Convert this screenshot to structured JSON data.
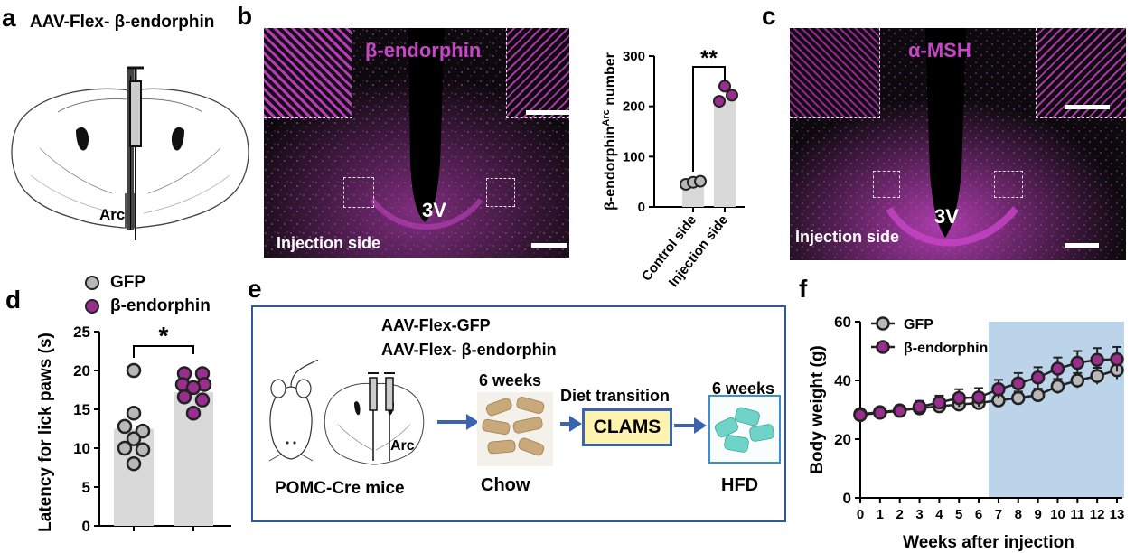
{
  "panels": {
    "a": {
      "letter": "a",
      "title": "AAV-Flex- β-endorphin",
      "region_label": "Arc"
    },
    "b": {
      "letter": "b",
      "image_title": "β-endorphin",
      "ventricle_label": "3V",
      "side_label": "Injection side",
      "colors": {
        "stain": "#c845c8"
      }
    },
    "c": {
      "letter": "c",
      "image_title": "α-MSH",
      "ventricle_label": "3V",
      "side_label": "Injection side"
    },
    "d": {
      "letter": "d",
      "legend": [
        {
          "name": "GFP",
          "color": "#b8b8b8"
        },
        {
          "name": "β-endorphin",
          "color": "#9a2e8e"
        }
      ]
    },
    "e": {
      "letter": "e",
      "vector_line1": "AAV-Flex-GFP",
      "vector_line2": "AAV-Flex- β-endorphin",
      "weeks1": "6 weeks",
      "weeks2": "6 weeks",
      "diet_transition": "Diet transition",
      "clams": "CLAMS",
      "mouse_label": "POMC-Cre mice",
      "region_label": "Arc",
      "chow": "Chow",
      "hfd": "HFD",
      "colors": {
        "frame": "#2e5a9c",
        "arrow": "#3b63b0",
        "clams_bg": "#fff3b0",
        "hfd_pellet": "#6fd3c8",
        "chow_pellet": "#c9a87a"
      }
    },
    "f": {
      "letter": "f",
      "shade_color": "#bcd4ea"
    }
  },
  "chart_data": [
    {
      "id": "b_bar",
      "type": "bar",
      "categories": [
        "Control side",
        "Injection side"
      ],
      "values": [
        48,
        220
      ],
      "points": [
        [
          45,
          49,
          51
        ],
        [
          210,
          222,
          240
        ]
      ],
      "ylabel": "β-endorphin",
      "ylabel_sup": "Arc",
      "ylabel_tail": " number",
      "ylim": [
        0,
        300
      ],
      "yticks": [
        0,
        100,
        200,
        300
      ],
      "significance": "**",
      "bar_color": "#d9d9d9",
      "point_colors": [
        "#b8b8b8",
        "#9a2e8e"
      ]
    },
    {
      "id": "d_bar",
      "type": "bar",
      "categories": [
        "GFP",
        "β-endorphin"
      ],
      "values": [
        12.5,
        17.2
      ],
      "points": [
        [
          20,
          14.5,
          12.8,
          12.2,
          11.2,
          10,
          9.8,
          8
        ],
        [
          19.6,
          19.6,
          18.2,
          18.2,
          17.8,
          16.6,
          16.2,
          14.5
        ]
      ],
      "ylabel": "Latency for lick paws (s)",
      "ylim": [
        0,
        25
      ],
      "yticks": [
        0,
        5,
        10,
        15,
        20,
        25
      ],
      "significance": "*",
      "bar_color": "#d9d9d9",
      "point_colors": [
        "#b8b8b8",
        "#9a2e8e"
      ]
    },
    {
      "id": "f_line",
      "type": "line",
      "x": [
        0,
        1,
        2,
        3,
        4,
        5,
        6,
        7,
        8,
        9,
        10,
        11,
        12,
        13
      ],
      "series": [
        {
          "name": "GFP",
          "values": [
            28.5,
            29.2,
            29.8,
            30.5,
            31.2,
            31.8,
            32.3,
            33.2,
            34,
            35,
            38,
            40,
            41.5,
            43.5
          ],
          "err": [
            1.5,
            1.5,
            1.6,
            1.6,
            1.8,
            1.8,
            2,
            2,
            2.2,
            2.2,
            2.5,
            2.5,
            2.8,
            3
          ],
          "color": "#b8b8b8"
        },
        {
          "name": "β-endorphin",
          "values": [
            28.2,
            29,
            29.6,
            31,
            32.5,
            34,
            34.2,
            37,
            39,
            41,
            44,
            46,
            47,
            47.2
          ],
          "err": [
            1.5,
            1.5,
            1.6,
            2,
            2.3,
            3,
            3.2,
            3.2,
            3.5,
            3.5,
            3.8,
            4,
            4,
            4.2
          ],
          "color": "#9a2e8e"
        }
      ],
      "xlabel": "Weeks after injection",
      "ylabel": "Body weight (g)",
      "ylim": [
        0,
        60
      ],
      "yticks": [
        0,
        20,
        40,
        60
      ],
      "xlim": [
        0,
        13
      ],
      "shaded_from_week": 6.5,
      "legend_position": "top-left"
    }
  ]
}
